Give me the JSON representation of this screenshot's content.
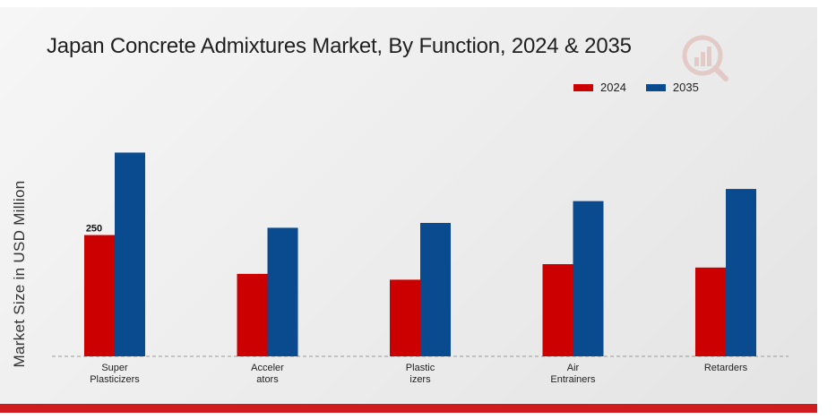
{
  "chart_data": {
    "type": "bar",
    "title": "Japan Concrete Admixtures Market, By Function, 2024 & 2035",
    "xlabel": "",
    "ylabel": "Market Size in USD Million",
    "categories": [
      [
        "Super",
        "Plasticizers"
      ],
      [
        "Acceler",
        "ators"
      ],
      [
        "Plastic",
        "izers"
      ],
      [
        "Air",
        "Entrainers"
      ],
      [
        "Retarders"
      ]
    ],
    "series": [
      {
        "name": "2024",
        "color": "#cc0000",
        "values": [
          250,
          170,
          158,
          190,
          183
        ]
      },
      {
        "name": "2035",
        "color": "#0a4a8f",
        "values": [
          420,
          265,
          275,
          320,
          345
        ]
      }
    ],
    "data_labels": [
      {
        "series": 0,
        "index": 0,
        "text": "250"
      }
    ],
    "ylim": [
      0,
      550
    ],
    "grid": false,
    "legend_position": "top-right",
    "baseline": "dashed"
  }
}
